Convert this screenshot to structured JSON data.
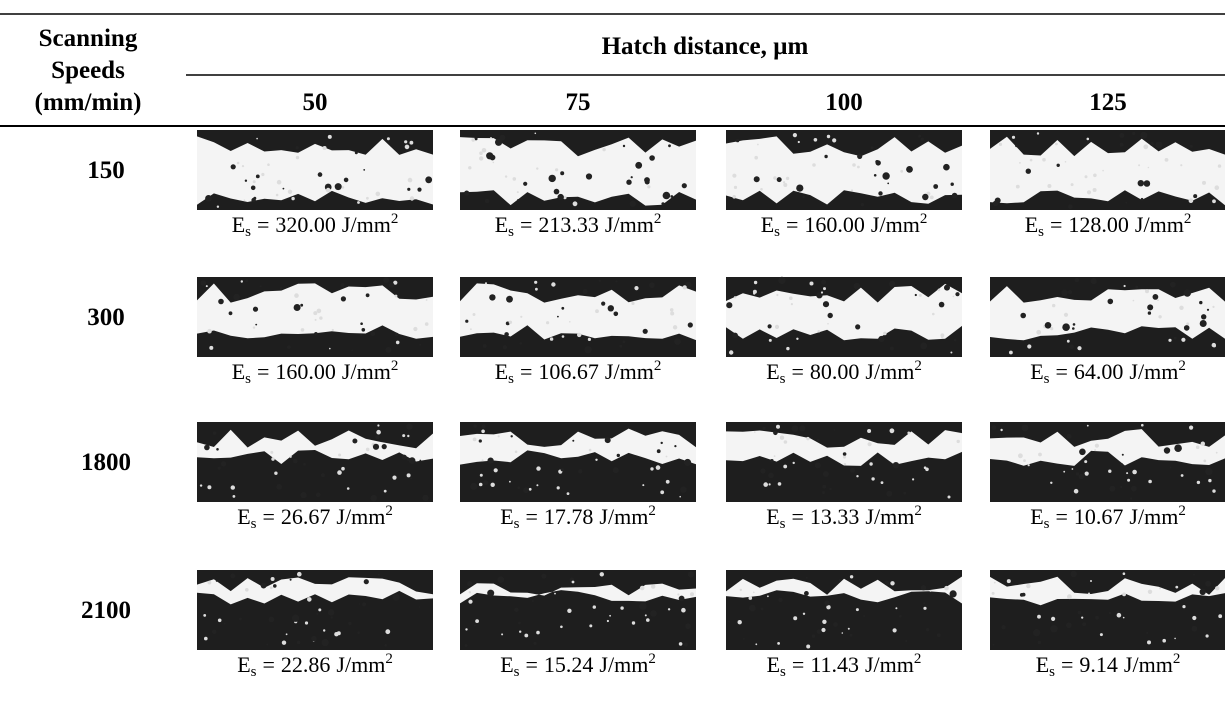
{
  "header": {
    "row_header": [
      "Scanning",
      "Speeds",
      "(mm/min)"
    ],
    "column_group": "Hatch distance, µm",
    "hatch_distances": [
      "50",
      "75",
      "100",
      "125"
    ]
  },
  "energy_label": {
    "symbol": "E",
    "subscript": "s",
    "equals": "=",
    "unit": "J/mm",
    "exponent": "2"
  },
  "rows": [
    {
      "speed": "150",
      "energies": [
        "320.00",
        "213.33",
        "160.00",
        "128.00"
      ]
    },
    {
      "speed": "300",
      "energies": [
        "160.00",
        "106.67",
        "80.00",
        "64.00"
      ]
    },
    {
      "speed": "1800",
      "energies": [
        "26.67",
        "17.78",
        "13.33",
        "10.67"
      ]
    },
    {
      "speed": "2100",
      "energies": [
        "22.86",
        "15.24",
        "11.43",
        "9.14"
      ]
    }
  ]
}
